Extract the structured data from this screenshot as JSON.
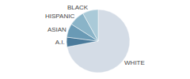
{
  "chart_data": {
    "type": "pie",
    "categories": [
      "WHITE",
      "A.I.",
      "ASIAN",
      "HISPANIC",
      "BLACK"
    ],
    "values": [
      72,
      5,
      7,
      8,
      8
    ],
    "colors": [
      "#d4dce6",
      "#4a7a9b",
      "#6a9ab5",
      "#8ab4c8",
      "#aacad8"
    ]
  }
}
